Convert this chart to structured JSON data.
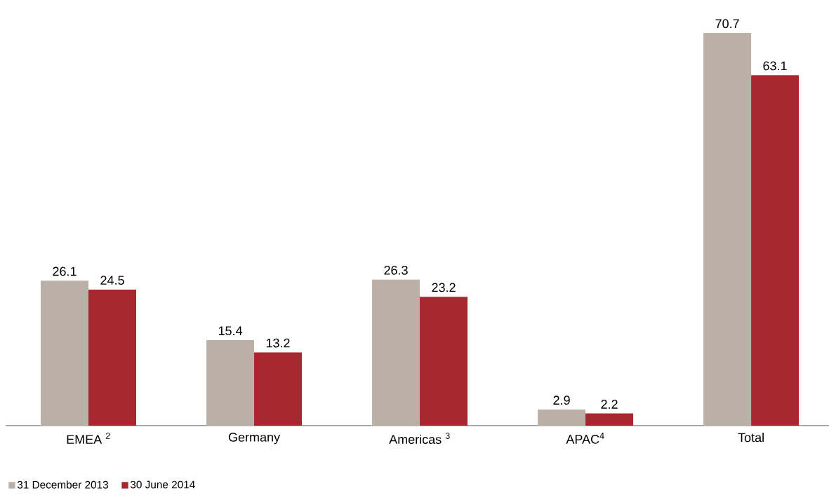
{
  "chart_data": {
    "type": "bar",
    "categories": [
      "EMEA $^{2}$",
      "Germany",
      "Americas $^{3}$",
      "APAC$^{4}$",
      "Total"
    ],
    "series": [
      {
        "name": "31 December 2013",
        "color": "#bbb0a5",
        "values": [
          26.1,
          15.4,
          26.3,
          2.9,
          70.7
        ]
      },
      {
        "name": "30 June 2014",
        "color": "#a8272f",
        "values": [
          24.5,
          13.2,
          23.2,
          2.2,
          63.1
        ]
      }
    ],
    "data_labels": true,
    "legend": "bottom left"
  }
}
